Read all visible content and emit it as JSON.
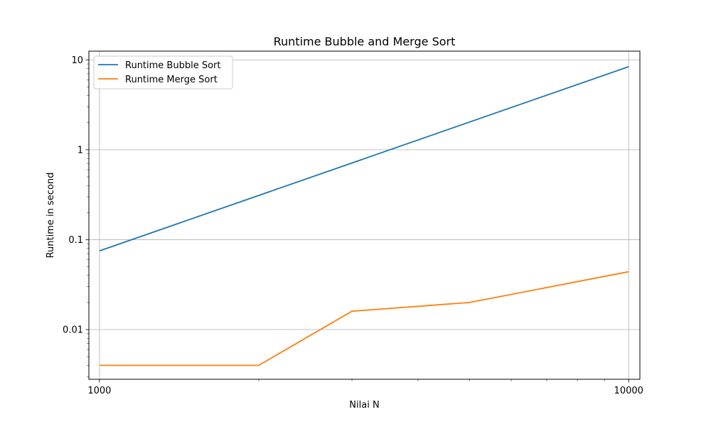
{
  "chart_data": {
    "type": "line",
    "title": "Runtime Bubble and Merge Sort",
    "xlabel": "Nilai N",
    "ylabel": "Runtime in second",
    "xscale": "log",
    "yscale": "log",
    "xlim": [
      955,
      10500
    ],
    "ylim": [
      0.0028,
      12.5
    ],
    "xticks": [
      {
        "value": 1000,
        "label": "1000"
      },
      {
        "value": 10000,
        "label": "10000"
      }
    ],
    "yticks": [
      {
        "value": 0.01,
        "label": "0.01"
      },
      {
        "value": 0.1,
        "label": "0.1"
      },
      {
        "value": 1,
        "label": "1"
      },
      {
        "value": 10,
        "label": "10"
      }
    ],
    "grid": true,
    "legend_position": "top-left",
    "series": [
      {
        "name": "Runtime Bubble Sort",
        "color": "#1f77b4",
        "x": [
          1000,
          10000
        ],
        "y": [
          0.075,
          8.4
        ]
      },
      {
        "name": "Runtime Merge Sort",
        "color": "#ff7f0e",
        "x": [
          1000,
          2000,
          3000,
          5000,
          10000
        ],
        "y": [
          0.004,
          0.004,
          0.016,
          0.02,
          0.044
        ]
      }
    ]
  }
}
